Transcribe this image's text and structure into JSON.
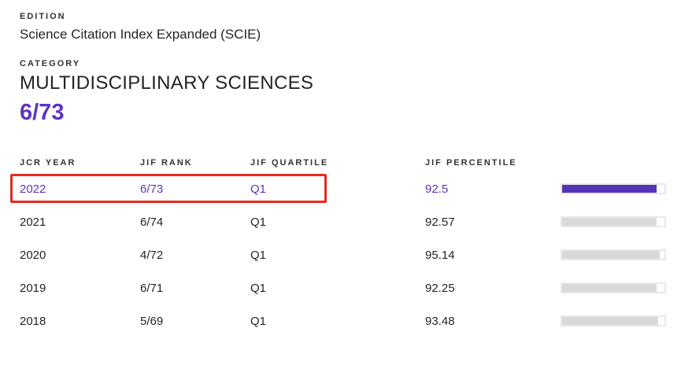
{
  "edition": {
    "label": "EDITION",
    "value": "Science Citation Index Expanded (SCIE)"
  },
  "category": {
    "label": "CATEGORY",
    "value": "MULTIDISCIPLINARY SCIENCES",
    "current_rank": "6/73"
  },
  "table": {
    "headers": [
      "JCR YEAR",
      "JIF RANK",
      "JIF QUARTILE",
      "JIF PERCENTILE"
    ],
    "rows": [
      {
        "year": "2022",
        "rank": "6/73",
        "quartile": "Q1",
        "percentile": "92.5",
        "percentile_value": 92.5,
        "highlighted": true
      },
      {
        "year": "2021",
        "rank": "6/74",
        "quartile": "Q1",
        "percentile": "92.57",
        "percentile_value": 92.57,
        "highlighted": false
      },
      {
        "year": "2020",
        "rank": "4/72",
        "quartile": "Q1",
        "percentile": "95.14",
        "percentile_value": 95.14,
        "highlighted": false
      },
      {
        "year": "2019",
        "rank": "6/71",
        "quartile": "Q1",
        "percentile": "92.25",
        "percentile_value": 92.25,
        "highlighted": false
      },
      {
        "year": "2018",
        "rank": "5/69",
        "quartile": "Q1",
        "percentile": "93.48",
        "percentile_value": 93.48,
        "highlighted": false
      }
    ]
  },
  "annotation": {
    "description": "red box highlighting 2022 year, rank and quartile cells",
    "target_row": "2022"
  },
  "colors": {
    "accent_purple": "#5e33bf",
    "bar_purple": "#5634b8",
    "bar_gray": "#d9d9d9",
    "annotation_red": "#e9281d",
    "text_dark": "#242424"
  }
}
